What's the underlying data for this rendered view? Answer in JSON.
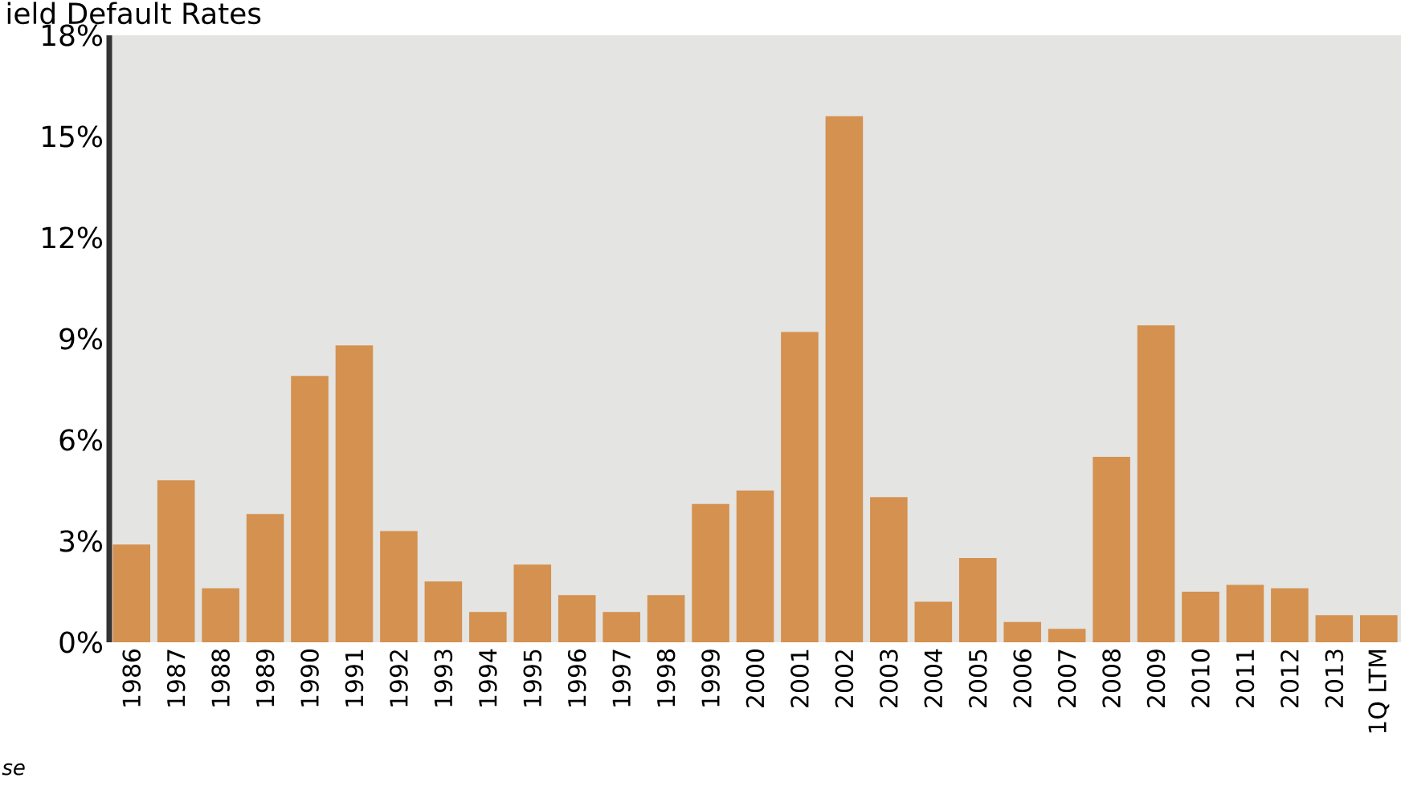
{
  "chart_data": {
    "type": "bar",
    "title": "ield Default Rates",
    "categories": [
      "1986",
      "1987",
      "1988",
      "1989",
      "1990",
      "1991",
      "1992",
      "1993",
      "1994",
      "1995",
      "1996",
      "1997",
      "1998",
      "1999",
      "2000",
      "2001",
      "2002",
      "2003",
      "2004",
      "2005",
      "2006",
      "2007",
      "2008",
      "2009",
      "2010",
      "2011",
      "2012",
      "2013",
      "1Q LTM"
    ],
    "values": [
      2.9,
      4.8,
      1.6,
      3.8,
      7.9,
      8.8,
      3.3,
      1.8,
      0.9,
      2.3,
      1.4,
      0.9,
      1.4,
      4.1,
      4.5,
      9.2,
      15.6,
      4.3,
      1.2,
      2.5,
      0.6,
      0.4,
      5.5,
      9.4,
      1.5,
      1.7,
      1.6,
      0.8,
      0.8
    ],
    "color": "#d4914f",
    "ylim": [
      0,
      18
    ],
    "yticks": [
      {
        "value": 0,
        "label": "0%"
      },
      {
        "value": 3,
        "label": "3%"
      },
      {
        "value": 6,
        "label": "6%"
      },
      {
        "value": 9,
        "label": "9%"
      },
      {
        "value": 12,
        "label": "12%"
      },
      {
        "value": 15,
        "label": "15%"
      },
      {
        "value": 18,
        "label": "18%"
      }
    ],
    "grid": false,
    "annotations": [
      "*se*"
    ]
  }
}
